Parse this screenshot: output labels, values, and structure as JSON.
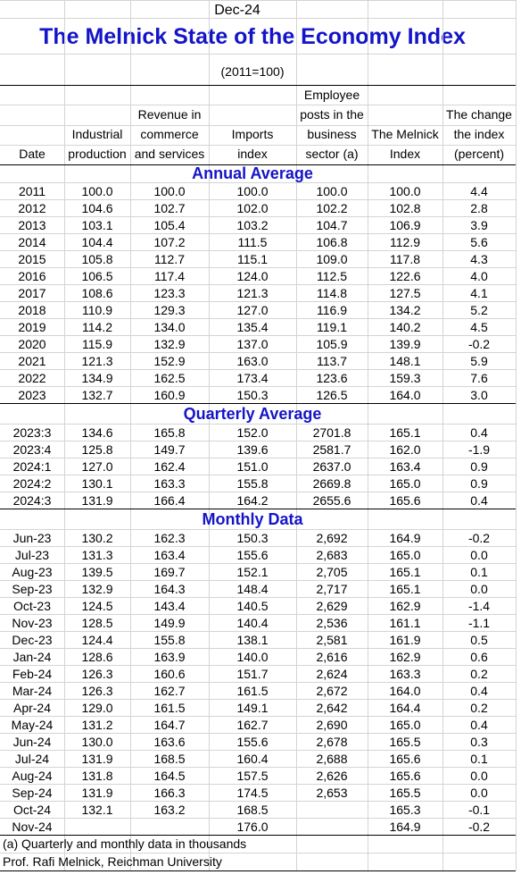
{
  "header": {
    "date": "Dec-24",
    "title": "The Melnick State of the Economy Index",
    "base": "(2011=100)"
  },
  "table": {
    "columns": [
      [
        "Date"
      ],
      [
        "Industrial",
        "production"
      ],
      [
        "Revenue in",
        "commerce",
        "and services"
      ],
      [
        "Imports",
        "index"
      ],
      [
        "Employee",
        "posts in the",
        "business",
        "sector (a)"
      ],
      [
        "The Melnick",
        "Index"
      ],
      [
        "The change",
        "the index",
        "(percent)"
      ]
    ],
    "sections": [
      {
        "title": "Annual Average",
        "rows": [
          [
            "2011",
            "100.0",
            "100.0",
            "100.0",
            "100.0",
            "100.0",
            "4.4"
          ],
          [
            "2012",
            "104.6",
            "102.7",
            "102.0",
            "102.2",
            "102.8",
            "2.8"
          ],
          [
            "2013",
            "103.1",
            "105.4",
            "103.2",
            "104.7",
            "106.9",
            "3.9"
          ],
          [
            "2014",
            "104.4",
            "107.2",
            "111.5",
            "106.8",
            "112.9",
            "5.6"
          ],
          [
            "2015",
            "105.8",
            "112.7",
            "115.1",
            "109.0",
            "117.8",
            "4.3"
          ],
          [
            "2016",
            "106.5",
            "117.4",
            "124.0",
            "112.5",
            "122.6",
            "4.0"
          ],
          [
            "2017",
            "108.6",
            "123.3",
            "121.3",
            "114.8",
            "127.5",
            "4.1"
          ],
          [
            "2018",
            "110.9",
            "129.3",
            "127.0",
            "116.9",
            "134.2",
            "5.2"
          ],
          [
            "2019",
            "114.2",
            "134.0",
            "135.4",
            "119.1",
            "140.2",
            "4.5"
          ],
          [
            "2020",
            "115.9",
            "132.9",
            "137.0",
            "105.9",
            "139.9",
            "-0.2"
          ],
          [
            "2021",
            "121.3",
            "152.9",
            "163.0",
            "113.7",
            "148.1",
            "5.9"
          ],
          [
            "2022",
            "134.9",
            "162.5",
            "173.4",
            "123.6",
            "159.3",
            "7.6"
          ],
          [
            "2023",
            "132.7",
            "160.9",
            "150.3",
            "126.5",
            "164.0",
            "3.0"
          ]
        ]
      },
      {
        "title": "Quarterly Average",
        "rows": [
          [
            "2023:3",
            "134.6",
            "165.8",
            "152.0",
            "2701.8",
            "165.1",
            "0.4"
          ],
          [
            "2023:4",
            "125.8",
            "149.7",
            "139.6",
            "2581.7",
            "162.0",
            "-1.9"
          ],
          [
            "2024:1",
            "127.0",
            "162.4",
            "151.0",
            "2637.0",
            "163.4",
            "0.9"
          ],
          [
            "2024:2",
            "130.1",
            "163.3",
            "155.8",
            "2669.8",
            "165.0",
            "0.9"
          ],
          [
            "2024:3",
            "131.9",
            "166.4",
            "164.2",
            "2655.6",
            "165.6",
            "0.4"
          ]
        ]
      },
      {
        "title": "Monthly Data",
        "rows": [
          [
            "Jun-23",
            "130.2",
            "162.3",
            "150.3",
            "2,692",
            "164.9",
            "-0.2"
          ],
          [
            "Jul-23",
            "131.3",
            "163.4",
            "155.6",
            "2,683",
            "165.0",
            "0.0"
          ],
          [
            "Aug-23",
            "139.5",
            "169.7",
            "152.1",
            "2,705",
            "165.1",
            "0.1"
          ],
          [
            "Sep-23",
            "132.9",
            "164.3",
            "148.4",
            "2,717",
            "165.1",
            "0.0"
          ],
          [
            "Oct-23",
            "124.5",
            "143.4",
            "140.5",
            "2,629",
            "162.9",
            "-1.4"
          ],
          [
            "Nov-23",
            "128.5",
            "149.9",
            "140.4",
            "2,536",
            "161.1",
            "-1.1"
          ],
          [
            "Dec-23",
            "124.4",
            "155.8",
            "138.1",
            "2,581",
            "161.9",
            "0.5"
          ],
          [
            "Jan-24",
            "128.6",
            "163.9",
            "140.0",
            "2,616",
            "162.9",
            "0.6"
          ],
          [
            "Feb-24",
            "126.3",
            "160.6",
            "151.7",
            "2,624",
            "163.3",
            "0.2"
          ],
          [
            "Mar-24",
            "126.3",
            "162.7",
            "161.5",
            "2,672",
            "164.0",
            "0.4"
          ],
          [
            "Apr-24",
            "129.0",
            "161.5",
            "149.1",
            "2,642",
            "164.4",
            "0.2"
          ],
          [
            "May-24",
            "131.2",
            "164.7",
            "162.7",
            "2,690",
            "165.0",
            "0.4"
          ],
          [
            "Jun-24",
            "130.0",
            "163.6",
            "155.6",
            "2,678",
            "165.5",
            "0.3"
          ],
          [
            "Jul-24",
            "131.9",
            "168.5",
            "160.4",
            "2,688",
            "165.6",
            "0.1"
          ],
          [
            "Aug-24",
            "131.8",
            "164.5",
            "157.5",
            "2,626",
            "165.6",
            "0.0"
          ],
          [
            "Sep-24",
            "131.9",
            "166.3",
            "174.5",
            "2,653",
            "165.5",
            "0.0"
          ],
          [
            "Oct-24",
            "132.1",
            "163.2",
            "168.5",
            null,
            "165.3",
            "-0.1"
          ],
          [
            "Nov-24",
            null,
            null,
            "176.0",
            null,
            "164.9",
            "-0.2"
          ]
        ]
      }
    ]
  },
  "footnotes": [
    "(a) Quarterly and monthly data in thousands",
    "Prof. Rafi Melnick, Reichman University"
  ]
}
